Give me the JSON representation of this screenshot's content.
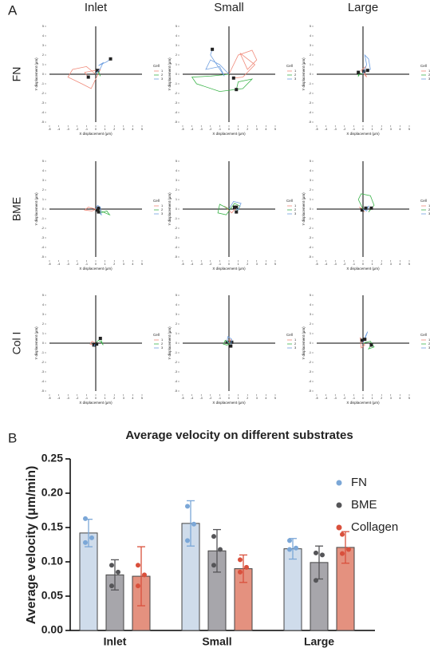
{
  "panel_labels": [
    "A",
    "B"
  ],
  "column_titles": [
    "Inlet",
    "Small",
    "Large"
  ],
  "row_titles": [
    "FN",
    "BME",
    "Col I"
  ],
  "chart_data": [
    {
      "type": "trajectory",
      "x_label": "X displacement (μm)",
      "y_label": "Y displacement (μm)",
      "legend_title": "Cell",
      "xlim": [
        -5,
        5
      ],
      "ylim": [
        -5,
        5
      ],
      "xticks": [
        -5,
        -4,
        -3,
        -2,
        -1,
        0,
        1,
        2,
        3,
        4,
        5
      ],
      "yticks": [
        -5,
        -4,
        -3,
        -2,
        -1,
        0,
        1,
        2,
        3,
        4,
        5
      ],
      "series": [
        {
          "name": "1",
          "color": "#f08a7a",
          "x": [
            0,
            -1,
            -2.5,
            -3,
            -1.5,
            -0.5,
            0.5,
            -1.2,
            -0.8
          ],
          "values": [
            0,
            0.8,
            0.5,
            -0.3,
            -1,
            -1.5,
            0.5,
            0.2,
            -0.3
          ]
        },
        {
          "name": "2",
          "color": "#3cb44b",
          "x": [
            0,
            0.3,
            0.5,
            0.2
          ],
          "values": [
            0,
            0.3,
            -0.2,
            0.4
          ]
        },
        {
          "name": "3",
          "color": "#6f9fe0",
          "x": [
            0,
            0.5,
            0.8,
            0.3,
            1.2,
            1.6
          ],
          "values": [
            0,
            0.6,
            1.2,
            0.9,
            1.3,
            1.6
          ]
        }
      ]
    },
    {
      "type": "trajectory",
      "x_label": "X displacement (μm)",
      "y_label": "Y displacement (μm)",
      "legend_title": "Cell",
      "xlim": [
        -5,
        5
      ],
      "ylim": [
        -5,
        5
      ],
      "xticks": [
        -5,
        -4,
        -3,
        -2,
        -1,
        0,
        1,
        2,
        3,
        4,
        5
      ],
      "yticks": [
        -5,
        -4,
        -3,
        -2,
        -1,
        0,
        1,
        2,
        3,
        4,
        5
      ],
      "series": [
        {
          "name": "1",
          "color": "#f08a7a",
          "x": [
            0,
            1,
            2.5,
            3,
            2,
            1.2,
            2.8,
            1.5,
            0.5
          ],
          "values": [
            0,
            2,
            2.5,
            1.5,
            0.5,
            2.2,
            1,
            -0.3,
            -0.4
          ]
        },
        {
          "name": "2",
          "color": "#3cb44b",
          "x": [
            0,
            -2,
            -4,
            -3.5,
            -1,
            1.5,
            2.5,
            1,
            0.8
          ],
          "values": [
            0,
            -0.2,
            -0.3,
            -1,
            -1.8,
            -1.5,
            -0.5,
            -0.8,
            -1.6
          ]
        },
        {
          "name": "3",
          "color": "#6f9fe0",
          "x": [
            0,
            -1,
            -2,
            -2.5,
            -1,
            -0.5,
            -2,
            -1.8
          ],
          "values": [
            0,
            1,
            1.5,
            0.5,
            0.8,
            -0.2,
            2,
            2.6
          ]
        }
      ]
    },
    {
      "type": "trajectory",
      "x_label": "X displacement (μm)",
      "y_label": "Y displacement (μm)",
      "legend_title": "Cell",
      "xlim": [
        -5,
        5
      ],
      "ylim": [
        -5,
        5
      ],
      "xticks": [
        -5,
        -4,
        -3,
        -2,
        -1,
        0,
        1,
        2,
        3,
        4,
        5
      ],
      "yticks": [
        -5,
        -4,
        -3,
        -2,
        -1,
        0,
        1,
        2,
        3,
        4,
        5
      ],
      "series": [
        {
          "name": "1",
          "color": "#f08a7a",
          "x": [
            0,
            0.3,
            -0.2,
            0.4,
            0.1
          ],
          "values": [
            0,
            0.8,
            0.4,
            -0.3,
            0.3
          ]
        },
        {
          "name": "2",
          "color": "#3cb44b",
          "x": [
            0,
            -0.3,
            -0.5,
            -0.5
          ],
          "values": [
            0,
            0.1,
            -0.2,
            0.2
          ]
        },
        {
          "name": "3",
          "color": "#6f9fe0",
          "x": [
            0,
            0.4,
            0.2,
            0.6,
            0.8,
            0.5
          ],
          "values": [
            0,
            1,
            2,
            1.6,
            0.5,
            0.4
          ]
        }
      ]
    },
    {
      "type": "trajectory",
      "x_label": "X displacement (μm)",
      "y_label": "Y displacement (μm)",
      "legend_title": "Cell",
      "xlim": [
        -5,
        5
      ],
      "ylim": [
        -5,
        5
      ],
      "xticks": [
        -5,
        -4,
        -3,
        -2,
        -1,
        0,
        1,
        2,
        3,
        4,
        5
      ],
      "yticks": [
        -5,
        -4,
        -3,
        -2,
        -1,
        0,
        1,
        2,
        3,
        4,
        5
      ],
      "series": [
        {
          "name": "1",
          "color": "#f08a7a",
          "x": [
            0,
            -0.8,
            -1.2,
            -0.4,
            0.3
          ],
          "values": [
            0,
            0.2,
            -0.1,
            -0.2,
            0.1
          ]
        },
        {
          "name": "2",
          "color": "#3cb44b",
          "x": [
            0,
            0.8,
            1.5,
            1.2,
            0.5,
            0.2
          ],
          "values": [
            0,
            -0.3,
            -0.6,
            -0.2,
            -0.4,
            -0.1
          ]
        },
        {
          "name": "3",
          "color": "#6f9fe0",
          "x": [
            0,
            0.2,
            0.5,
            0.6,
            0.3
          ],
          "values": [
            0,
            0.4,
            0.2,
            -0.6,
            -0.3
          ]
        }
      ]
    },
    {
      "type": "trajectory",
      "x_label": "X displacement (μm)",
      "y_label": "Y displacement (μm)",
      "legend_title": "Cell",
      "xlim": [
        -5,
        5
      ],
      "ylim": [
        -5,
        5
      ],
      "xticks": [
        -5,
        -4,
        -3,
        -2,
        -1,
        0,
        1,
        2,
        3,
        4,
        5
      ],
      "yticks": [
        -5,
        -4,
        -3,
        -2,
        -1,
        0,
        1,
        2,
        3,
        4,
        5
      ],
      "series": [
        {
          "name": "1",
          "color": "#f08a7a",
          "x": [
            0,
            -0.5,
            0.3,
            0.8
          ],
          "values": [
            0,
            0.3,
            -0.4,
            0.2
          ]
        },
        {
          "name": "2",
          "color": "#3cb44b",
          "x": [
            0,
            -1,
            -1.2,
            -0.3,
            0.6,
            1.2,
            0.8
          ],
          "values": [
            0,
            0.5,
            -0.4,
            -0.6,
            0.6,
            0.3,
            -0.3
          ]
        },
        {
          "name": "3",
          "color": "#6f9fe0",
          "x": [
            0,
            0.5,
            1.3,
            1,
            0.6
          ],
          "values": [
            0,
            0.8,
            0.6,
            -0.1,
            0.2
          ]
        }
      ]
    },
    {
      "type": "trajectory",
      "x_label": "X displacement (μm)",
      "y_label": "Y displacement (μm)",
      "legend_title": "Cell",
      "xlim": [
        -5,
        5
      ],
      "ylim": [
        -5,
        5
      ],
      "xticks": [
        -5,
        -4,
        -3,
        -2,
        -1,
        0,
        1,
        2,
        3,
        4,
        5
      ],
      "yticks": [
        -5,
        -4,
        -3,
        -2,
        -1,
        0,
        1,
        2,
        3,
        4,
        5
      ],
      "series": [
        {
          "name": "1",
          "color": "#f08a7a",
          "x": [
            0,
            -0.4,
            0.2,
            -0.1
          ],
          "values": [
            0,
            0.2,
            -0.3,
            -0.1
          ]
        },
        {
          "name": "2",
          "color": "#3cb44b",
          "x": [
            0,
            -0.5,
            -0.2,
            0.8,
            1.2,
            0.6,
            0.9
          ],
          "values": [
            0,
            1,
            1.6,
            1.4,
            0.4,
            -0.3,
            0.1
          ]
        },
        {
          "name": "3",
          "color": "#6f9fe0",
          "x": [
            0,
            0.4,
            0.6,
            0.3
          ],
          "values": [
            0,
            -0.2,
            0.3,
            0.1
          ]
        }
      ]
    },
    {
      "type": "trajectory",
      "x_label": "X displacement (μm)",
      "y_label": "Y displacement (μm)",
      "legend_title": "Cell",
      "xlim": [
        -5,
        5
      ],
      "ylim": [
        -5,
        5
      ],
      "xticks": [
        -5,
        -4,
        -3,
        -2,
        -1,
        0,
        1,
        2,
        3,
        4,
        5
      ],
      "yticks": [
        -5,
        -4,
        -3,
        -2,
        -1,
        0,
        1,
        2,
        3,
        4,
        5
      ],
      "series": [
        {
          "name": "1",
          "color": "#f08a7a",
          "x": [
            0,
            -0.4,
            -0.6,
            -0.2
          ],
          "values": [
            0,
            0.2,
            -0.1,
            -0.2
          ]
        },
        {
          "name": "2",
          "color": "#3cb44b",
          "x": [
            0,
            0.3,
            0.6,
            0.8,
            0.5
          ],
          "values": [
            0,
            0.3,
            0.1,
            -0.2,
            0.5
          ]
        },
        {
          "name": "3",
          "color": "#6f9fe0",
          "x": [
            0,
            -0.2,
            0.1
          ],
          "values": [
            0,
            -0.3,
            -0.1
          ]
        }
      ]
    },
    {
      "type": "trajectory",
      "x_label": "X displacement (μm)",
      "y_label": "Y displacement (μm)",
      "legend_title": "Cell",
      "xlim": [
        -5,
        5
      ],
      "ylim": [
        -5,
        5
      ],
      "xticks": [
        -5,
        -4,
        -3,
        -2,
        -1,
        0,
        1,
        2,
        3,
        4,
        5
      ],
      "yticks": [
        -5,
        -4,
        -3,
        -2,
        -1,
        0,
        1,
        2,
        3,
        4,
        5
      ],
      "series": [
        {
          "name": "1",
          "color": "#f08a7a",
          "x": [
            0,
            0.2,
            -0.2
          ],
          "values": [
            0,
            0.4,
            0.1
          ]
        },
        {
          "name": "2",
          "color": "#3cb44b",
          "x": [
            0,
            -0.4,
            -0.6,
            -0.2,
            0.3
          ],
          "values": [
            0,
            0.3,
            -0.1,
            -0.2,
            0.1
          ]
        },
        {
          "name": "3",
          "color": "#6f9fe0",
          "x": [
            0,
            -0.2,
            -0.1,
            0.3,
            0.2
          ],
          "values": [
            0,
            0.3,
            0.7,
            0.4,
            -0.3
          ]
        }
      ]
    },
    {
      "type": "trajectory",
      "x_label": "X displacement (μm)",
      "y_label": "Y displacement (μm)",
      "legend_title": "Cell",
      "xlim": [
        -5,
        5
      ],
      "ylim": [
        -5,
        5
      ],
      "xticks": [
        -5,
        -4,
        -3,
        -2,
        -1,
        0,
        1,
        2,
        3,
        4,
        5
      ],
      "yticks": [
        -5,
        -4,
        -3,
        -2,
        -1,
        0,
        1,
        2,
        3,
        4,
        5
      ],
      "series": [
        {
          "name": "1",
          "color": "#f08a7a",
          "x": [
            0,
            -0.3,
            -0.2,
            0.2,
            -0.1
          ],
          "values": [
            0,
            0.6,
            -0.5,
            -0.2,
            0.3
          ]
        },
        {
          "name": "2",
          "color": "#3cb44b",
          "x": [
            0,
            0.8,
            1.2,
            0.6,
            0.9
          ],
          "values": [
            0,
            0.2,
            -0.4,
            -0.6,
            -0.2
          ]
        },
        {
          "name": "3",
          "color": "#6f9fe0",
          "x": [
            0,
            0.3,
            0.5,
            0.2
          ],
          "values": [
            0,
            0.8,
            1.2,
            0.4
          ]
        }
      ]
    },
    {
      "type": "bar",
      "title": "Average velocity on different substrates",
      "y_label": "Average velocity (μm/min)",
      "categories": [
        "Inlet",
        "Small",
        "Large"
      ],
      "ylim": [
        0,
        0.25
      ],
      "yticks": [
        {
          "value": 0,
          "label": "0.00"
        },
        {
          "value": 0.05,
          "label": "0.05"
        },
        {
          "value": 0.1,
          "label": "0.10"
        },
        {
          "value": 0.15,
          "label": "0.15"
        },
        {
          "value": 0.2,
          "label": "0.20"
        },
        {
          "value": 0.25,
          "label": "0.25"
        }
      ],
      "series": [
        {
          "name": "FN",
          "color": "#7ba7d7",
          "bar_color": "#cfdceb",
          "values": [
            0.142,
            0.156,
            0.119
          ],
          "errors": [
            0.02,
            0.033,
            0.015
          ],
          "points": [
            [
              0.163,
              0.135,
              0.128
            ],
            [
              0.181,
              0.155,
              0.131
            ],
            [
              0.131,
              0.12,
              0.118
            ]
          ]
        },
        {
          "name": "BME",
          "color": "#555558",
          "bar_color": "#a7a6ab",
          "values": [
            0.081,
            0.116,
            0.099
          ],
          "errors": [
            0.022,
            0.031,
            0.024
          ],
          "points": [
            [
              0.095,
              0.085,
              0.065
            ],
            [
              0.137,
              0.118,
              0.095
            ],
            [
              0.113,
              0.11,
              0.073
            ]
          ]
        },
        {
          "name": "Collagen",
          "color": "#d9503c",
          "bar_color": "#e4917f",
          "values": [
            0.079,
            0.09,
            0.121
          ],
          "errors": [
            0.043,
            0.02,
            0.023
          ],
          "points": [
            [
              0.095,
              0.081,
              0.065
            ],
            [
              0.103,
              0.092,
              0.085
            ],
            [
              0.14,
              0.118,
              0.112
            ]
          ]
        }
      ]
    }
  ]
}
